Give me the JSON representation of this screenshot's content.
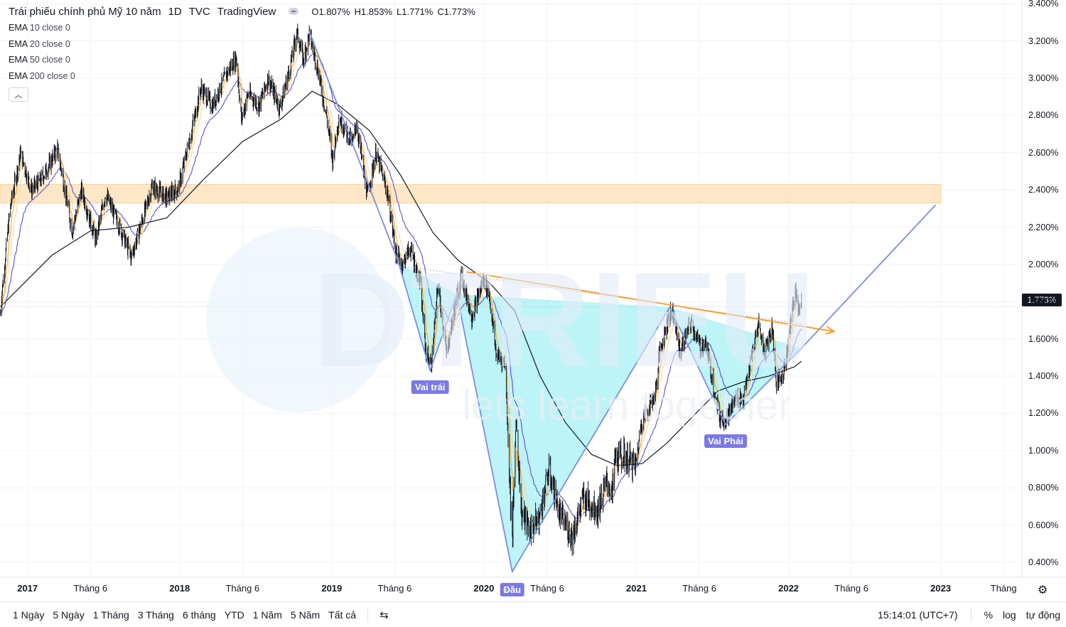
{
  "header": {
    "title": "Trái phiếu chính phủ Mỹ 10 năm",
    "interval": "1D",
    "exchange": "TVC",
    "source": "TradingView",
    "ohlc": [
      {
        "label": "O",
        "value": "1.807%"
      },
      {
        "label": "H",
        "value": "1.853%"
      },
      {
        "label": "L",
        "value": "1.771%"
      },
      {
        "label": "C",
        "value": "1.773%"
      }
    ]
  },
  "indicators": [
    {
      "name": "EMA",
      "args": "10 close 0",
      "color": "#f5a623"
    },
    {
      "name": "EMA",
      "args": "20 close 0",
      "color": "#f0d7a8"
    },
    {
      "name": "EMA",
      "args": "50 close 0",
      "color": "#5b4fd6"
    },
    {
      "name": "EMA",
      "args": "200 close 0",
      "color": "#131722"
    }
  ],
  "collapse_icon": "chevron-up-icon",
  "current_price": "1.773%",
  "watermark": {
    "text": "DTRIEU",
    "subtext": "lets learn together"
  },
  "pattern_labels": [
    {
      "text": "Vai trái",
      "date": "2019-08-25"
    },
    {
      "text": "Đầu",
      "date": "2020-03-09"
    },
    {
      "text": "Vai Phải",
      "date": "2021-08-03"
    }
  ],
  "chart_data": {
    "type": "line",
    "title": "Trái phiếu chính phủ Mỹ 10 năm",
    "unit": "%",
    "x_axis_labels": [
      {
        "text": "2017",
        "date": "2017-01-01",
        "year": true
      },
      {
        "text": "Tháng 6",
        "date": "2017-06-01",
        "year": false
      },
      {
        "text": "2018",
        "date": "2018-01-01",
        "year": true
      },
      {
        "text": "Tháng 6",
        "date": "2018-06-01",
        "year": false
      },
      {
        "text": "2019",
        "date": "2019-01-01",
        "year": true
      },
      {
        "text": "Tháng 6",
        "date": "2019-06-01",
        "year": false
      },
      {
        "text": "2020",
        "date": "2020-01-01",
        "year": true
      },
      {
        "text": "Tháng 6",
        "date": "2020-06-01",
        "year": false
      },
      {
        "text": "2021",
        "date": "2021-01-01",
        "year": true
      },
      {
        "text": "Tháng 6",
        "date": "2021-06-01",
        "year": false
      },
      {
        "text": "2022",
        "date": "2022-01-01",
        "year": true
      },
      {
        "text": "Tháng 6",
        "date": "2022-06-01",
        "year": false
      },
      {
        "text": "2023",
        "date": "2023-01-01",
        "year": true
      },
      {
        "text": "Tháng",
        "date": "2023-06-01",
        "year": false
      }
    ],
    "y_ticks": [
      "3.400%",
      "3.200%",
      "3.000%",
      "2.800%",
      "2.600%",
      "2.400%",
      "2.200%",
      "2.000%",
      "1.800%",
      "1.600%",
      "1.400%",
      "1.200%",
      "1.000%",
      "0.800%",
      "0.600%",
      "0.400%"
    ],
    "ylim": [
      0.32,
      3.42
    ],
    "xlim": [
      "2016-10-27",
      "2023-07-15"
    ],
    "price_path": [
      [
        "2016-10-27",
        1.74
      ],
      [
        "2016-11-20",
        2.3
      ],
      [
        "2016-12-15",
        2.6
      ],
      [
        "2017-01-10",
        2.4
      ],
      [
        "2017-02-01",
        2.45
      ],
      [
        "2017-03-14",
        2.62
      ],
      [
        "2017-04-18",
        2.18
      ],
      [
        "2017-05-10",
        2.4
      ],
      [
        "2017-06-14",
        2.13
      ],
      [
        "2017-07-07",
        2.38
      ],
      [
        "2017-08-10",
        2.2
      ],
      [
        "2017-09-07",
        2.04
      ],
      [
        "2017-10-27",
        2.42
      ],
      [
        "2017-12-01",
        2.36
      ],
      [
        "2017-12-29",
        2.41
      ],
      [
        "2018-01-30",
        2.72
      ],
      [
        "2018-02-21",
        2.95
      ],
      [
        "2018-03-20",
        2.85
      ],
      [
        "2018-04-25",
        3.03
      ],
      [
        "2018-05-17",
        3.11
      ],
      [
        "2018-05-29",
        2.78
      ],
      [
        "2018-06-15",
        2.92
      ],
      [
        "2018-07-10",
        2.85
      ],
      [
        "2018-08-01",
        3.0
      ],
      [
        "2018-08-29",
        2.84
      ],
      [
        "2018-09-25",
        3.08
      ],
      [
        "2018-10-09",
        3.25
      ],
      [
        "2018-10-25",
        3.1
      ],
      [
        "2018-11-08",
        3.24
      ],
      [
        "2018-11-28",
        3.05
      ],
      [
        "2018-12-20",
        2.79
      ],
      [
        "2019-01-03",
        2.56
      ],
      [
        "2019-01-18",
        2.79
      ],
      [
        "2019-02-20",
        2.65
      ],
      [
        "2019-03-01",
        2.76
      ],
      [
        "2019-03-27",
        2.37
      ],
      [
        "2019-04-17",
        2.6
      ],
      [
        "2019-05-15",
        2.38
      ],
      [
        "2019-06-04",
        2.06
      ],
      [
        "2019-06-20",
        2.0
      ],
      [
        "2019-07-08",
        2.09
      ],
      [
        "2019-08-01",
        1.9
      ],
      [
        "2019-08-15",
        1.52
      ],
      [
        "2019-08-28",
        1.46
      ],
      [
        "2019-09-13",
        1.9
      ],
      [
        "2019-10-03",
        1.52
      ],
      [
        "2019-10-29",
        1.84
      ],
      [
        "2019-11-08",
        1.94
      ],
      [
        "2019-12-03",
        1.72
      ],
      [
        "2019-12-31",
        1.92
      ],
      [
        "2020-01-13",
        1.85
      ],
      [
        "2020-01-31",
        1.51
      ],
      [
        "2020-02-21",
        1.47
      ],
      [
        "2020-03-09",
        0.5
      ],
      [
        "2020-03-18",
        1.18
      ],
      [
        "2020-03-31",
        0.67
      ],
      [
        "2020-04-21",
        0.57
      ],
      [
        "2020-05-13",
        0.64
      ],
      [
        "2020-06-05",
        0.9
      ],
      [
        "2020-06-30",
        0.66
      ],
      [
        "2020-07-31",
        0.54
      ],
      [
        "2020-08-27",
        0.75
      ],
      [
        "2020-09-30",
        0.68
      ],
      [
        "2020-10-23",
        0.84
      ],
      [
        "2020-11-04",
        0.76
      ],
      [
        "2020-11-10",
        0.96
      ],
      [
        "2020-12-04",
        0.97
      ],
      [
        "2020-12-31",
        0.92
      ],
      [
        "2021-01-12",
        1.15
      ],
      [
        "2021-02-15",
        1.3
      ],
      [
        "2021-02-25",
        1.52
      ],
      [
        "2021-03-19",
        1.72
      ],
      [
        "2021-03-30",
        1.74
      ],
      [
        "2021-04-15",
        1.53
      ],
      [
        "2021-05-12",
        1.69
      ],
      [
        "2021-06-04",
        1.55
      ],
      [
        "2021-06-16",
        1.58
      ],
      [
        "2021-07-19",
        1.18
      ],
      [
        "2021-08-04",
        1.17
      ],
      [
        "2021-08-30",
        1.29
      ],
      [
        "2021-09-15",
        1.28
      ],
      [
        "2021-10-21",
        1.69
      ],
      [
        "2021-11-03",
        1.53
      ],
      [
        "2021-11-23",
        1.67
      ],
      [
        "2021-12-03",
        1.35
      ],
      [
        "2021-12-20",
        1.41
      ],
      [
        "2022-01-04",
        1.66
      ],
      [
        "2022-01-18",
        1.87
      ],
      [
        "2022-01-25",
        1.76
      ],
      [
        "2022-02-01",
        1.8
      ]
    ],
    "ema200_path": [
      [
        "2016-10-27",
        1.77
      ],
      [
        "2017-03-01",
        2.05
      ],
      [
        "2017-06-01",
        2.18
      ],
      [
        "2017-09-01",
        2.2
      ],
      [
        "2017-12-01",
        2.25
      ],
      [
        "2018-03-01",
        2.46
      ],
      [
        "2018-06-01",
        2.66
      ],
      [
        "2018-09-01",
        2.78
      ],
      [
        "2018-11-15",
        2.93
      ],
      [
        "2019-01-15",
        2.86
      ],
      [
        "2019-04-01",
        2.72
      ],
      [
        "2019-06-15",
        2.48
      ],
      [
        "2019-09-01",
        2.17
      ],
      [
        "2019-11-01",
        2.02
      ],
      [
        "2020-01-15",
        1.9
      ],
      [
        "2020-03-15",
        1.75
      ],
      [
        "2020-05-15",
        1.4
      ],
      [
        "2020-07-15",
        1.15
      ],
      [
        "2020-09-15",
        0.98
      ],
      [
        "2020-11-15",
        0.92
      ],
      [
        "2021-01-15",
        0.93
      ],
      [
        "2021-03-15",
        1.04
      ],
      [
        "2021-05-15",
        1.18
      ],
      [
        "2021-07-15",
        1.32
      ],
      [
        "2021-09-15",
        1.37
      ],
      [
        "2021-11-15",
        1.4
      ],
      [
        "2022-01-15",
        1.45
      ],
      [
        "2022-02-01",
        1.48
      ]
    ],
    "resistance_zone": {
      "from_date": "2016-10-27",
      "to_date": "2023-01-01",
      "low": 2.33,
      "high": 2.43
    },
    "neckline": {
      "start": [
        "2019-11-20",
        1.96
      ],
      "end": [
        "2022-04-20",
        1.64
      ],
      "color": "#f59a23"
    },
    "dotted_neckline": {
      "start": [
        "2019-06-25",
        1.99
      ],
      "end": [
        "2022-02-01",
        1.68
      ]
    },
    "pattern_points": [
      [
        "2018-11-08",
        3.25
      ],
      [
        "2019-06-10",
        2.01
      ],
      [
        "2019-08-25",
        1.43
      ],
      [
        "2019-10-28",
        1.84
      ],
      [
        "2020-03-09",
        0.35
      ],
      [
        "2021-03-22",
        1.77
      ],
      [
        "2021-08-03",
        1.14
      ],
      [
        "2022-02-01",
        1.55
      ],
      [
        "2022-12-20",
        2.32
      ]
    ],
    "pattern_color": "#7b8de0",
    "fill_color": "#9ff0f5"
  },
  "bottom_bar": {
    "ranges": [
      "1 Ngày",
      "5 Ngày",
      "1 Tháng",
      "3 Tháng",
      "6 tháng",
      "YTD",
      "1 Năm",
      "5 Năm",
      "Tất cả"
    ],
    "compare_icon": "compare-icon",
    "time": "15:14:01 (UTC+7)",
    "percent": "%",
    "log": "log",
    "auto": "tự động"
  },
  "settings_icon": "gear-icon"
}
